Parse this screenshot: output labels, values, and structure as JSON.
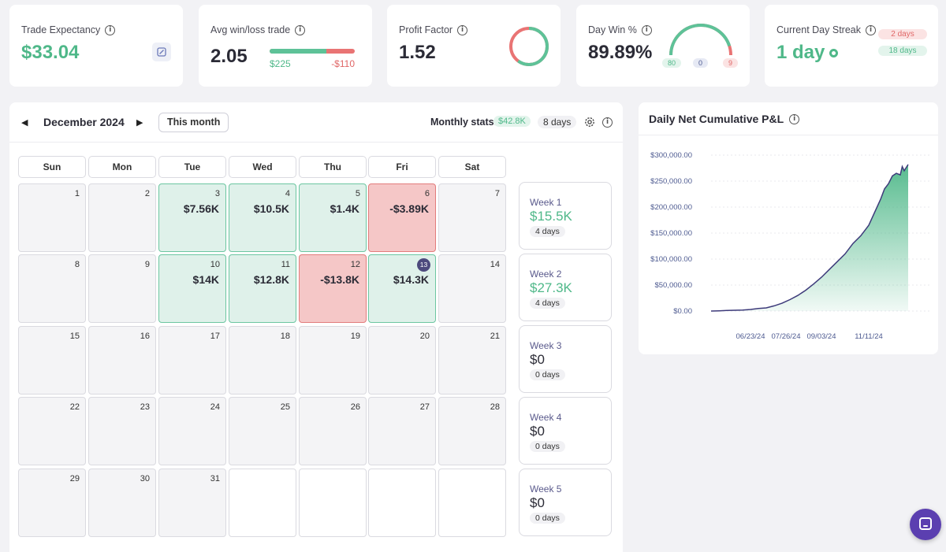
{
  "stats": {
    "trade_expectancy": {
      "title": "Trade Expectancy",
      "value": "$33.04",
      "icon": "calculator-icon"
    },
    "avg_win_loss": {
      "title": "Avg win/loss trade",
      "value": "2.05",
      "avg_win": "$225",
      "avg_loss": "-$110",
      "win_fraction": 0.67
    },
    "profit_factor": {
      "title": "Profit Factor",
      "value": "1.52",
      "win_fraction": 0.6
    },
    "day_win": {
      "title": "Day Win %",
      "value": "89.89%",
      "wins": "80",
      "breakeven": "0",
      "losses": "9"
    },
    "day_streak": {
      "title": "Current Day Streak",
      "value": "1 day",
      "losing_days": "2 days",
      "winning_days": "18 days"
    }
  },
  "calendar": {
    "month_label": "December 2024",
    "this_month_label": "This month",
    "monthly_stats_label": "Monthly stats:",
    "monthly_pnl": "$42.8K",
    "monthly_days": "8 days",
    "weekdays": [
      "Sun",
      "Mon",
      "Tue",
      "Wed",
      "Thu",
      "Fri",
      "Sat"
    ],
    "weeks": [
      [
        {
          "day": "1",
          "pnl": "",
          "status": "none"
        },
        {
          "day": "2",
          "pnl": "",
          "status": "none"
        },
        {
          "day": "3",
          "pnl": "$7.56K",
          "status": "win"
        },
        {
          "day": "4",
          "pnl": "$10.5K",
          "status": "win"
        },
        {
          "day": "5",
          "pnl": "$1.4K",
          "status": "win"
        },
        {
          "day": "6",
          "pnl": "-$3.89K",
          "status": "loss"
        },
        {
          "day": "7",
          "pnl": "",
          "status": "none"
        }
      ],
      [
        {
          "day": "8",
          "pnl": "",
          "status": "none"
        },
        {
          "day": "9",
          "pnl": "",
          "status": "none"
        },
        {
          "day": "10",
          "pnl": "$14K",
          "status": "win"
        },
        {
          "day": "11",
          "pnl": "$12.8K",
          "status": "win"
        },
        {
          "day": "12",
          "pnl": "-$13.8K",
          "status": "loss"
        },
        {
          "day": "13",
          "pnl": "$14.3K",
          "status": "win",
          "today": true
        },
        {
          "day": "14",
          "pnl": "",
          "status": "none"
        }
      ],
      [
        {
          "day": "15",
          "pnl": "",
          "status": "none"
        },
        {
          "day": "16",
          "pnl": "",
          "status": "none"
        },
        {
          "day": "17",
          "pnl": "",
          "status": "none"
        },
        {
          "day": "18",
          "pnl": "",
          "status": "none"
        },
        {
          "day": "19",
          "pnl": "",
          "status": "none"
        },
        {
          "day": "20",
          "pnl": "",
          "status": "none"
        },
        {
          "day": "21",
          "pnl": "",
          "status": "none"
        }
      ],
      [
        {
          "day": "22",
          "pnl": "",
          "status": "none"
        },
        {
          "day": "23",
          "pnl": "",
          "status": "none"
        },
        {
          "day": "24",
          "pnl": "",
          "status": "none"
        },
        {
          "day": "25",
          "pnl": "",
          "status": "none"
        },
        {
          "day": "26",
          "pnl": "",
          "status": "none"
        },
        {
          "day": "27",
          "pnl": "",
          "status": "none"
        },
        {
          "day": "28",
          "pnl": "",
          "status": "none"
        }
      ],
      [
        {
          "day": "29",
          "pnl": "",
          "status": "none"
        },
        {
          "day": "30",
          "pnl": "",
          "status": "none"
        },
        {
          "day": "31",
          "pnl": "",
          "status": "none"
        },
        {
          "day": "",
          "pnl": "",
          "status": "blank"
        },
        {
          "day": "",
          "pnl": "",
          "status": "blank"
        },
        {
          "day": "",
          "pnl": "",
          "status": "blank"
        },
        {
          "day": "",
          "pnl": "",
          "status": "blank"
        }
      ]
    ],
    "week_summaries": [
      {
        "label": "Week 1",
        "value": "$15.5K",
        "days": "4 days",
        "positive": true
      },
      {
        "label": "Week 2",
        "value": "$27.3K",
        "days": "4 days",
        "positive": true
      },
      {
        "label": "Week 3",
        "value": "$0",
        "days": "0 days",
        "positive": false
      },
      {
        "label": "Week 4",
        "value": "$0",
        "days": "0 days",
        "positive": false
      },
      {
        "label": "Week 5",
        "value": "$0",
        "days": "0 days",
        "positive": false
      }
    ]
  },
  "chart_data": {
    "type": "area",
    "title": "Daily Net Cumulative P&L",
    "xlabel": "",
    "ylabel": "",
    "ylim": [
      0,
      300000
    ],
    "y_ticks": [
      0,
      50000,
      100000,
      150000,
      200000,
      250000,
      300000
    ],
    "y_tick_labels": [
      "$0.00",
      "$50,000.00",
      "$100,000.00",
      "$150,000.00",
      "$200,000.00",
      "$250,000.00",
      "$300,000.00"
    ],
    "x_tick_labels": [
      "06/23/24",
      "07/26/24",
      "09/03/24",
      "11/11/24"
    ],
    "x_tick_positions": [
      0.2,
      0.38,
      0.56,
      0.8
    ],
    "x": [
      0,
      0.04,
      0.08,
      0.12,
      0.16,
      0.2,
      0.24,
      0.28,
      0.32,
      0.36,
      0.4,
      0.44,
      0.48,
      0.52,
      0.56,
      0.6,
      0.64,
      0.68,
      0.72,
      0.76,
      0.8,
      0.83,
      0.86,
      0.88,
      0.9,
      0.92,
      0.94,
      0.96,
      0.97,
      0.98,
      1.0
    ],
    "values": [
      0,
      500,
      1000,
      1500,
      2000,
      3000,
      5000,
      6000,
      10000,
      15000,
      22000,
      30000,
      40000,
      52000,
      65000,
      80000,
      95000,
      110000,
      130000,
      145000,
      165000,
      190000,
      215000,
      235000,
      245000,
      260000,
      265000,
      262000,
      278000,
      270000,
      282000
    ],
    "line_color": "#3d3a7a",
    "fill_color": "#4fb889"
  },
  "colors": {
    "win": "#4fb889",
    "loss": "#e06767",
    "accent": "#4d4a7d"
  }
}
